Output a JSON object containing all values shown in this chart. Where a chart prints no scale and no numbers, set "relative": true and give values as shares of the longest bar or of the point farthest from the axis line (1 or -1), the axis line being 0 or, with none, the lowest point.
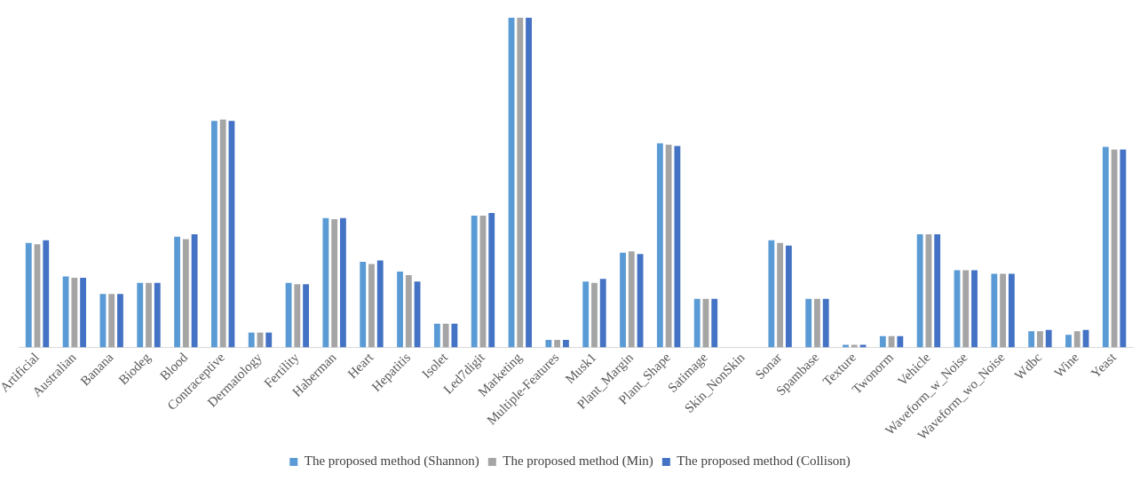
{
  "chart_data": {
    "type": "bar",
    "relative": true,
    "legend": "bottom",
    "grid": false,
    "categories": [
      "Artificial",
      "Australian",
      "Banana",
      "Biodeg",
      "Blood",
      "Contraceptive",
      "Dermatology",
      "Fertility",
      "Haberman",
      "Heart",
      "Hepatitis",
      "Isolet",
      "Led7digit",
      "Marketing",
      "Multiple-Features",
      "Musk1",
      "Plant_Margin",
      "Plant_Shape",
      "Satimage",
      "Skin_NonSkin",
      "Sonar",
      "Spambase",
      "Texture",
      "Twonorm",
      "Vehicle",
      "Waveform_w_Noise",
      "Waveform_wo_Noise",
      "Wdbc",
      "Wine",
      "Yeast"
    ],
    "series": [
      {
        "name": "The proposed method (Shannon)",
        "color": "#5b9bd5",
        "values": [
          0.317,
          0.215,
          0.162,
          0.196,
          0.336,
          0.687,
          0.045,
          0.196,
          0.392,
          0.26,
          0.23,
          0.072,
          0.4,
          1,
          0.023,
          0.2,
          0.287,
          0.619,
          0.147,
          0,
          0.325,
          0.147,
          0.008,
          0.034,
          0.343,
          0.234,
          0.223,
          0.049,
          0.038,
          0.608
        ]
      },
      {
        "name": "The proposed method (Min)",
        "color": "#a5a5a5",
        "values": [
          0.313,
          0.211,
          0.162,
          0.196,
          0.328,
          0.691,
          0.045,
          0.192,
          0.389,
          0.253,
          0.219,
          0.072,
          0.4,
          1,
          0.023,
          0.196,
          0.291,
          0.615,
          0.147,
          0,
          0.317,
          0.147,
          0.008,
          0.034,
          0.343,
          0.234,
          0.223,
          0.049,
          0.049,
          0.6
        ]
      },
      {
        "name": "The proposed method (Collison)",
        "color": "#4472c4",
        "values": [
          0.325,
          0.211,
          0.162,
          0.196,
          0.343,
          0.687,
          0.045,
          0.192,
          0.392,
          0.264,
          0.2,
          0.072,
          0.408,
          1,
          0.023,
          0.208,
          0.283,
          0.611,
          0.147,
          0,
          0.309,
          0.147,
          0.008,
          0.034,
          0.343,
          0.234,
          0.223,
          0.053,
          0.053,
          0.6
        ]
      }
    ]
  }
}
